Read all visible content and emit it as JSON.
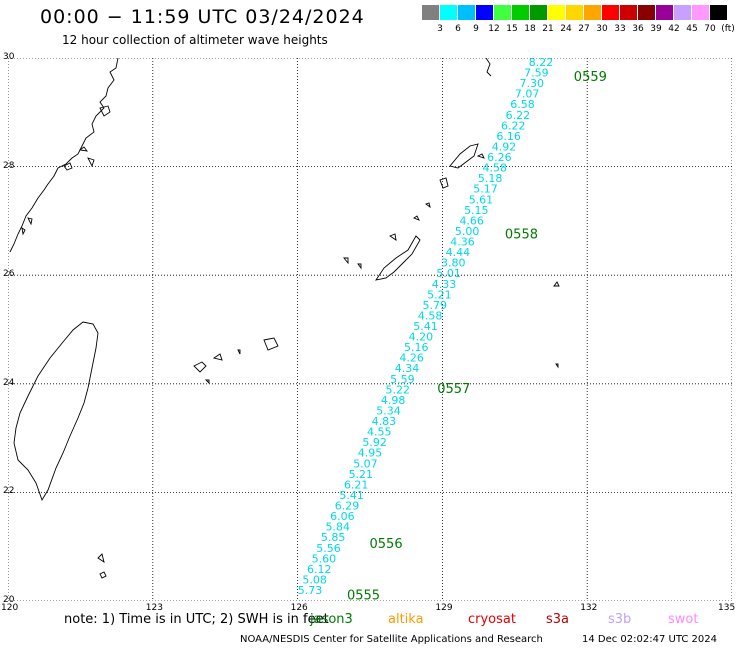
{
  "header": {
    "title": "00:00 − 11:59 UTC 03/24/2024",
    "subtitle": "12 hour collection of altimeter wave heights"
  },
  "scale": {
    "colors": [
      "#808080",
      "#00ffff",
      "#00bfff",
      "#0000ff",
      "#40ff40",
      "#00cc00",
      "#009900",
      "#ffff00",
      "#ffd700",
      "#ffa500",
      "#ff0000",
      "#cc0000",
      "#880000",
      "#990099",
      "#c8a0ff",
      "#ff99ff",
      "#000000"
    ],
    "labels": [
      "3",
      "6",
      "9",
      "12",
      "15",
      "18",
      "21",
      "24",
      "27",
      "30",
      "33",
      "36",
      "39",
      "42",
      "45",
      "70",
      "(ft)"
    ]
  },
  "map": {
    "lat_labels": [
      "30",
      "28",
      "26",
      "24",
      "22",
      "20"
    ],
    "lon_labels": [
      "120",
      "123",
      "126",
      "129",
      "132",
      "135"
    ]
  },
  "chart_data": {
    "type": "scatter",
    "x_range": [
      120,
      135
    ],
    "y_range": [
      20,
      30
    ],
    "wave_heights": [
      "8.22",
      "7.59",
      "7.30",
      "7.07",
      "6.58",
      "6.22",
      "6.22",
      "6.16",
      "4.92",
      "6.26",
      "4.58",
      "5.18",
      "5.17",
      "5.61",
      "5.15",
      "4.66",
      "5.00",
      "4.36",
      "4.44",
      "3.80",
      "5.01",
      "4.33",
      "5.21",
      "5.79",
      "4.58",
      "5.41",
      "4.20",
      "5.16",
      "4.26",
      "4.34",
      "5.59",
      "5.22",
      "4.98",
      "5.34",
      "4.83",
      "4.55",
      "5.92",
      "4.95",
      "5.07",
      "5.21",
      "6.21",
      "5.41",
      "6.29",
      "6.06",
      "5.84",
      "5.85",
      "5.56",
      "5.60",
      "6.12",
      "5.08",
      "5.73"
    ],
    "times": [
      {
        "label": "0559",
        "lat": 29.65
      },
      {
        "label": "0558",
        "lat": 26.75
      },
      {
        "label": "0557",
        "lat": 23.9
      },
      {
        "label": "0556",
        "lat": 21.05
      },
      {
        "label": "0555",
        "lat": 20.1
      }
    ]
  },
  "footer": {
    "note": "note:  1) Time is in UTC; 2) SWH is in feet",
    "satellites": [
      {
        "name": "jason3",
        "color": "#007a00"
      },
      {
        "name": "altika",
        "color": "#ff9900"
      },
      {
        "name": "cryosat",
        "color": "#e00000"
      },
      {
        "name": "s3a",
        "color": "#bb0000"
      },
      {
        "name": "s3b",
        "color": "#c0a0ff"
      },
      {
        "name": "swot",
        "color": "#ff88ff"
      }
    ],
    "credit": "NOAA/NESDIS Center for Satellite Applications and Research",
    "timestamp": "14 Dec 02:02:47 UTC 2024"
  }
}
